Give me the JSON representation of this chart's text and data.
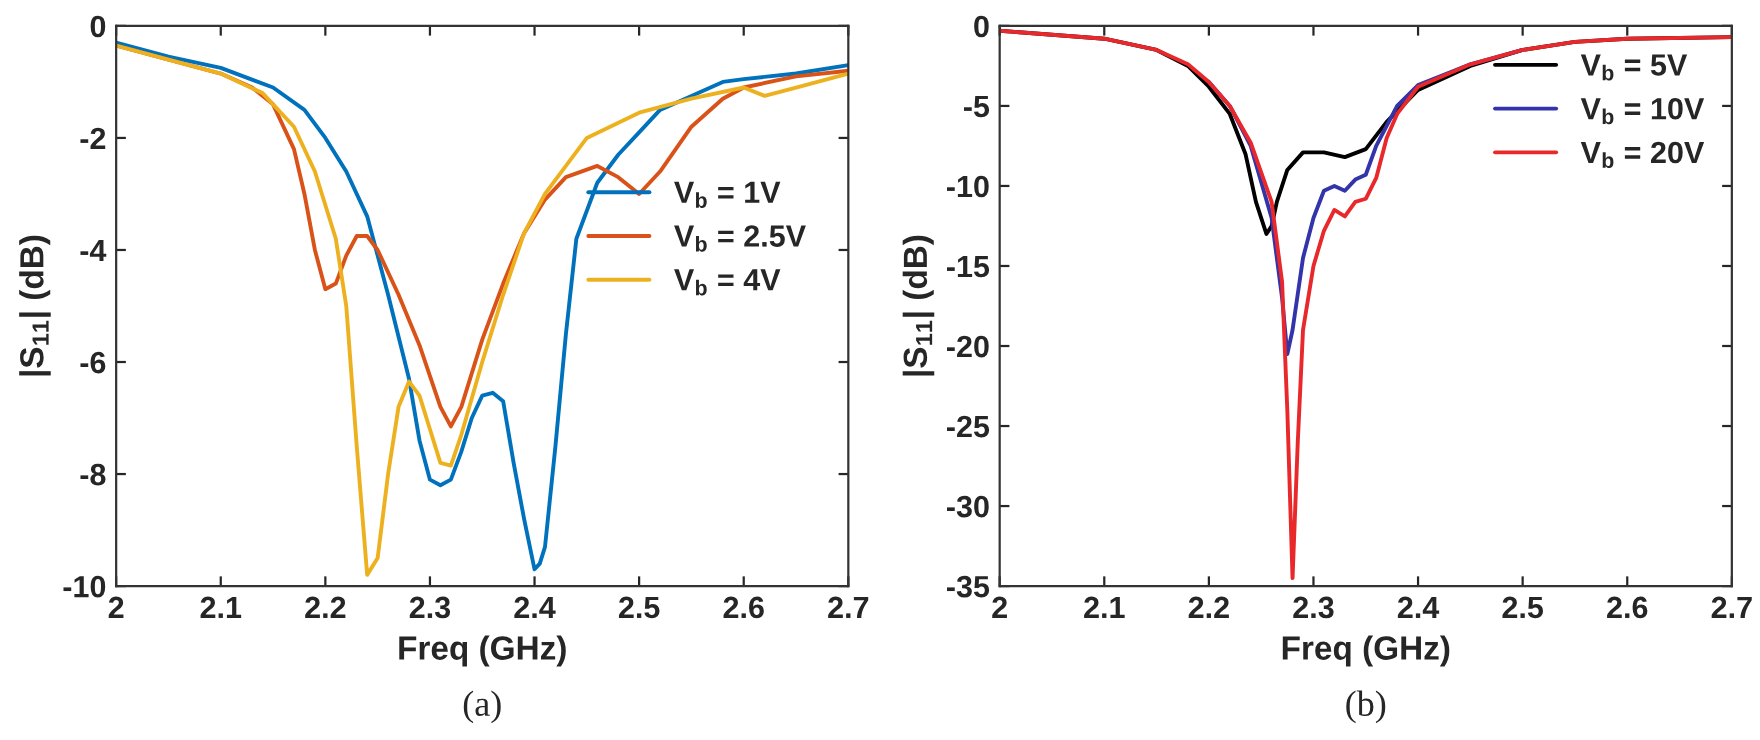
{
  "chart_data": [
    {
      "type": "line",
      "xlabel": "Freq (GHz)",
      "ylabel": "|S$_{11}$| (dB)",
      "xlim": [
        2,
        2.7
      ],
      "ylim": [
        -10,
        0
      ],
      "xticks": [
        2,
        2.1,
        2.2,
        2.3,
        2.4,
        2.5,
        2.6,
        2.7
      ],
      "yticks": [
        -10,
        -8,
        -6,
        -4,
        -2,
        0
      ],
      "grid": false,
      "legend": "right",
      "annotations": [
        "(a)"
      ],
      "series": [
        {
          "name": "V$_{b}$ = 1V",
          "color": "#0072bd",
          "x": [
            2.0,
            2.05,
            2.1,
            2.15,
            2.18,
            2.2,
            2.22,
            2.24,
            2.26,
            2.28,
            2.29,
            2.3,
            2.31,
            2.32,
            2.33,
            2.34,
            2.35,
            2.36,
            2.37,
            2.38,
            2.39,
            2.4,
            2.405,
            2.41,
            2.42,
            2.43,
            2.44,
            2.46,
            2.48,
            2.5,
            2.52,
            2.55,
            2.58,
            2.6,
            2.65,
            2.7
          ],
          "values": [
            -0.3,
            -0.55,
            -0.75,
            -1.1,
            -1.5,
            -2.0,
            -2.6,
            -3.4,
            -4.8,
            -6.3,
            -7.4,
            -8.1,
            -8.2,
            -8.1,
            -7.6,
            -7.0,
            -6.6,
            -6.55,
            -6.7,
            -7.8,
            -8.8,
            -9.7,
            -9.6,
            -9.3,
            -7.5,
            -5.5,
            -3.8,
            -2.8,
            -2.3,
            -1.9,
            -1.5,
            -1.25,
            -1.0,
            -0.95,
            -0.85,
            -0.7
          ]
        },
        {
          "name": "V$_{b}$ = 2.5V",
          "color": "#d95319",
          "x": [
            2.0,
            2.05,
            2.1,
            2.13,
            2.15,
            2.17,
            2.18,
            2.19,
            2.2,
            2.21,
            2.22,
            2.23,
            2.24,
            2.25,
            2.27,
            2.29,
            2.31,
            2.32,
            2.33,
            2.35,
            2.37,
            2.39,
            2.41,
            2.43,
            2.46,
            2.48,
            2.5,
            2.52,
            2.55,
            2.58,
            2.6,
            2.65,
            2.7
          ],
          "values": [
            -0.35,
            -0.6,
            -0.85,
            -1.1,
            -1.4,
            -2.2,
            -3.0,
            -4.0,
            -4.7,
            -4.6,
            -4.1,
            -3.75,
            -3.75,
            -4.0,
            -4.8,
            -5.7,
            -6.8,
            -7.15,
            -6.8,
            -5.6,
            -4.6,
            -3.7,
            -3.1,
            -2.7,
            -2.5,
            -2.7,
            -3.0,
            -2.6,
            -1.8,
            -1.3,
            -1.1,
            -0.9,
            -0.8
          ]
        },
        {
          "name": "V$_{b}$ = 4V",
          "color": "#edb120",
          "x": [
            2.0,
            2.05,
            2.1,
            2.14,
            2.17,
            2.19,
            2.21,
            2.22,
            2.23,
            2.24,
            2.25,
            2.26,
            2.27,
            2.28,
            2.29,
            2.3,
            2.31,
            2.32,
            2.33,
            2.35,
            2.37,
            2.39,
            2.41,
            2.43,
            2.45,
            2.5,
            2.55,
            2.6,
            2.62,
            2.65,
            2.7
          ],
          "values": [
            -0.35,
            -0.6,
            -0.85,
            -1.2,
            -1.8,
            -2.6,
            -3.8,
            -5.0,
            -7.5,
            -9.8,
            -9.5,
            -8.0,
            -6.8,
            -6.35,
            -6.6,
            -7.2,
            -7.8,
            -7.85,
            -7.3,
            -6.0,
            -4.8,
            -3.7,
            -3.0,
            -2.5,
            -2.0,
            -1.55,
            -1.3,
            -1.1,
            -1.25,
            -1.1,
            -0.85
          ]
        }
      ]
    },
    {
      "type": "line",
      "xlabel": "Freq (GHz)",
      "ylabel": "|S$_{11}$| (dB)",
      "xlim": [
        2,
        2.7
      ],
      "ylim": [
        -35,
        0
      ],
      "xticks": [
        2,
        2.1,
        2.2,
        2.3,
        2.4,
        2.5,
        2.6,
        2.7
      ],
      "yticks": [
        -35,
        -30,
        -25,
        -20,
        -15,
        -10,
        -5,
        0
      ],
      "grid": false,
      "legend": "top right",
      "annotations": [
        "(b)"
      ],
      "series": [
        {
          "name": "V$_{b}$ = 5V",
          "color": "#000000",
          "x": [
            2.0,
            2.1,
            2.15,
            2.18,
            2.2,
            2.22,
            2.235,
            2.245,
            2.255,
            2.26,
            2.265,
            2.275,
            2.29,
            2.31,
            2.33,
            2.35,
            2.37,
            2.4,
            2.45,
            2.5,
            2.55,
            2.6,
            2.7
          ],
          "values": [
            -0.3,
            -0.8,
            -1.5,
            -2.5,
            -3.8,
            -5.5,
            -8.0,
            -11.0,
            -13.0,
            -12.5,
            -11.0,
            -9.0,
            -7.9,
            -7.9,
            -8.2,
            -7.7,
            -6.0,
            -4.0,
            -2.5,
            -1.5,
            -1.0,
            -0.8,
            -0.7
          ]
        },
        {
          "name": "V$_{b}$ = 10V",
          "color": "#3333aa",
          "x": [
            2.2,
            2.22,
            2.24,
            2.26,
            2.27,
            2.275,
            2.28,
            2.29,
            2.3,
            2.31,
            2.32,
            2.33,
            2.34,
            2.35,
            2.36,
            2.38,
            2.4,
            2.45,
            2.5
          ],
          "values": [
            -3.5,
            -5.0,
            -7.5,
            -12.0,
            -17.0,
            -20.5,
            -19.0,
            -14.5,
            -12.0,
            -10.3,
            -10.0,
            -10.3,
            -9.6,
            -9.3,
            -7.5,
            -5.0,
            -3.7,
            -2.4,
            -1.5
          ]
        },
        {
          "name": "V$_{b}$ = 20V",
          "color": "#e8282b",
          "x": [
            2.0,
            2.1,
            2.15,
            2.18,
            2.2,
            2.22,
            2.24,
            2.26,
            2.27,
            2.275,
            2.28,
            2.285,
            2.29,
            2.3,
            2.31,
            2.32,
            2.33,
            2.34,
            2.35,
            2.36,
            2.37,
            2.38,
            2.4,
            2.45,
            2.5,
            2.55,
            2.6,
            2.7
          ],
          "values": [
            -0.3,
            -0.8,
            -1.5,
            -2.4,
            -3.5,
            -5.0,
            -7.3,
            -11.0,
            -16.0,
            -24.0,
            -34.5,
            -26.0,
            -19.0,
            -15.0,
            -12.8,
            -11.5,
            -11.9,
            -11.0,
            -10.8,
            -9.5,
            -7.0,
            -5.5,
            -3.8,
            -2.4,
            -1.5,
            -1.0,
            -0.8,
            -0.7
          ]
        }
      ]
    }
  ]
}
